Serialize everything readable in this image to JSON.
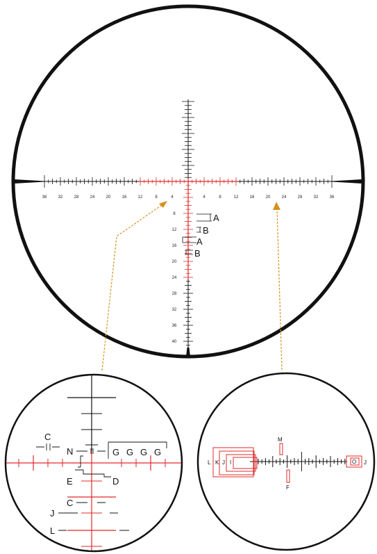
{
  "colors": {
    "reticle_black": "#111111",
    "reticle_red": "#e0282a",
    "callout_orange": "#d4921e",
    "frame": "#111111"
  },
  "main_scope": {
    "horizontal_labels_left": [
      "36",
      "32",
      "28",
      "24",
      "20",
      "16",
      "12",
      "8",
      "4"
    ],
    "horizontal_labels_right": [
      "4",
      "8",
      "12",
      "16",
      "20",
      "24",
      "28",
      "32",
      "36"
    ],
    "vertical_labels": [
      "8",
      "12",
      "16",
      "20",
      "24",
      "28",
      "32",
      "36",
      "40"
    ],
    "callouts": {
      "a1": "A",
      "b1": "B",
      "a2": "A",
      "b2": "B"
    }
  },
  "left_detail": {
    "labels": {
      "c_top": "C",
      "n": "N",
      "g": [
        "G",
        "G",
        "G",
        "G"
      ],
      "e": "E",
      "d": "D",
      "c_bottom": "C",
      "j": "J",
      "l": "L"
    }
  },
  "right_detail": {
    "labels": {
      "m": "M",
      "f": "F",
      "left_group": [
        "L",
        "K",
        "J",
        "I"
      ],
      "o": "O",
      "j_right": "J"
    }
  }
}
